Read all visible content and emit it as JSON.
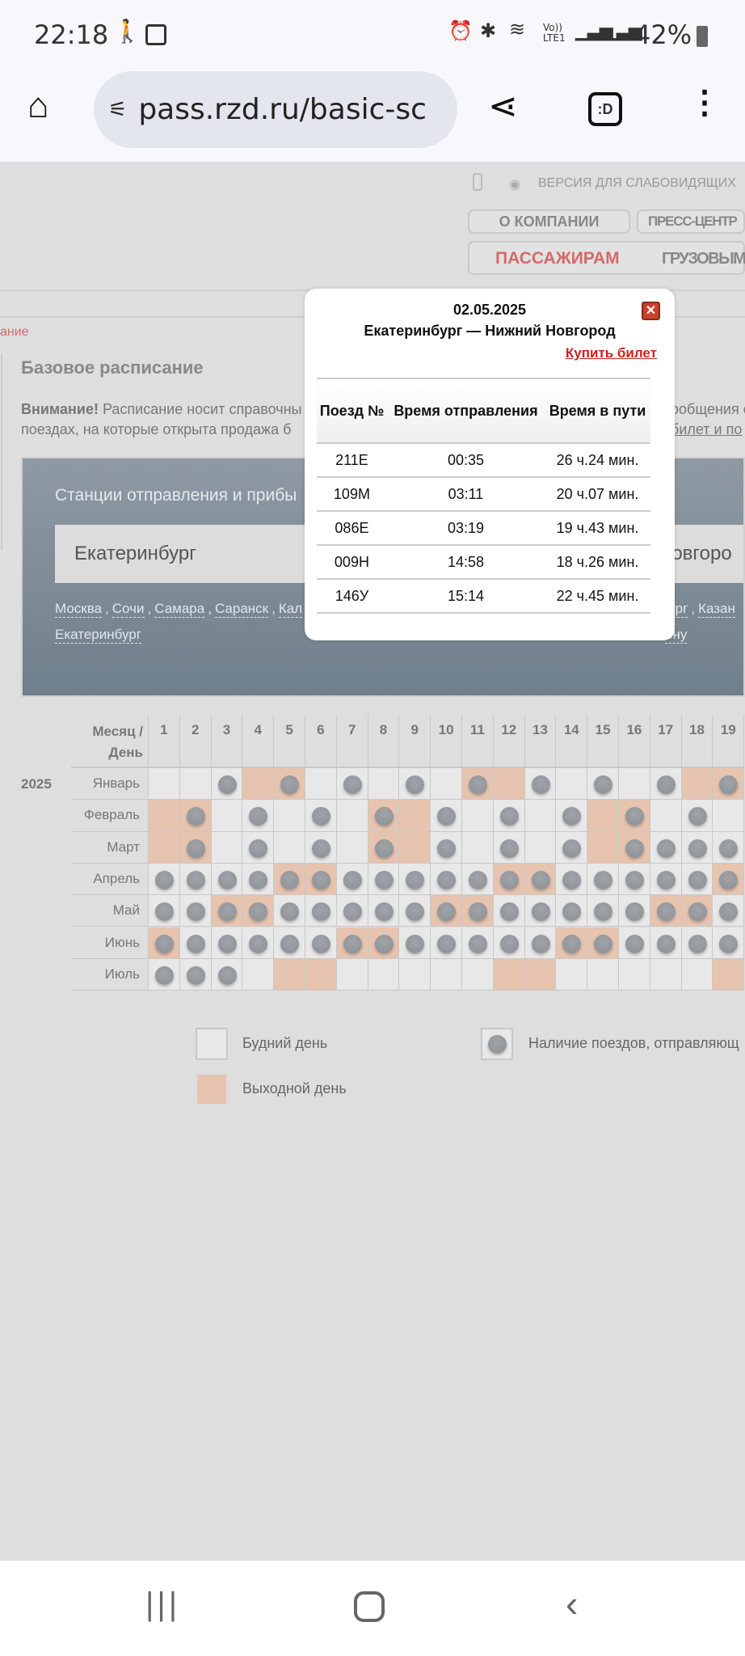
{
  "status_bar": {
    "time": "22:18",
    "battery": "42%",
    "network": "Vo)) LTE1"
  },
  "browser": {
    "url": "pass.rzd.ru/basic-sc",
    "tab_switch_label": ":D"
  },
  "header": {
    "accessibility": "ВЕРСИЯ ДЛЯ СЛАБОВИДЯЩИХ",
    "nav_top": [
      "О КОМПАНИИ",
      "ПРЕСС-ЦЕНТР"
    ],
    "nav_main": [
      "ПАССАЖИРАМ",
      "ГРУЗОВЫМ"
    ]
  },
  "breadcrumb": "ание",
  "page": {
    "title": "Базовое расписание",
    "attention_bold": "Внимание!",
    "attention_line1": "Расписание носит справочны",
    "attention_line1_right": "ообщения о",
    "attention_line2": "поездах, на которые открыта продажа б",
    "attention_line2_right": "билет и по"
  },
  "route_panel": {
    "label": "Станции отправления и прибы",
    "from": "Екатеринбург",
    "to": "Новгоро",
    "from_suggestions": [
      "Москва",
      "Сочи",
      "Самара",
      "Саранск",
      "Кал"
    ],
    "from_suggestion_2": "Екатеринбург",
    "to_suggestions": [
      "бург",
      "Казан"
    ],
    "to_suggestion_2": "ону"
  },
  "modal": {
    "date": "02.05.2025",
    "route": "Екатеринбург — Нижний Новгород",
    "buy_label": "Купить билет",
    "columns": [
      "Поезд №",
      "Время отправления",
      "Время в пути"
    ],
    "rows": [
      [
        "211Е",
        "00:35",
        "26 ч.24 мин."
      ],
      [
        "109М",
        "03:11",
        "20 ч.07 мин."
      ],
      [
        "086Е",
        "03:19",
        "19 ч.43 мин."
      ],
      [
        "009Н",
        "14:58",
        "18 ч.26 мин."
      ],
      [
        "146У",
        "15:14",
        "22 ч.45 мин."
      ]
    ]
  },
  "calendar": {
    "header_label_1": "Месяц /",
    "header_label_2": "День",
    "year": "2025",
    "days": [
      1,
      2,
      3,
      4,
      5,
      6,
      7,
      8,
      9,
      10,
      11,
      12,
      13,
      14,
      15,
      16,
      17,
      18,
      19
    ],
    "months": [
      {
        "name": "Январь",
        "weekends": [
          4,
          5,
          11,
          12,
          18,
          19
        ],
        "trains": [
          3,
          5,
          7,
          9,
          11,
          13,
          15,
          17,
          19
        ]
      },
      {
        "name": "Февраль",
        "weekends": [
          1,
          2,
          8,
          9,
          15,
          16
        ],
        "trains": [
          2,
          4,
          6,
          8,
          10,
          12,
          14,
          16,
          18
        ]
      },
      {
        "name": "Март",
        "weekends": [
          1,
          2,
          8,
          9,
          15,
          16
        ],
        "trains": [
          2,
          4,
          6,
          8,
          10,
          12,
          14,
          16,
          17,
          18,
          19
        ]
      },
      {
        "name": "Апрель",
        "weekends": [
          5,
          6,
          12,
          13,
          19
        ],
        "trains": [
          1,
          2,
          3,
          4,
          5,
          6,
          7,
          8,
          9,
          10,
          11,
          12,
          13,
          14,
          15,
          16,
          17,
          18,
          19
        ]
      },
      {
        "name": "Май",
        "weekends": [
          3,
          4,
          10,
          11,
          17,
          18
        ],
        "trains": [
          1,
          2,
          3,
          4,
          5,
          6,
          7,
          8,
          9,
          10,
          11,
          12,
          13,
          14,
          15,
          16,
          17,
          18,
          19
        ]
      },
      {
        "name": "Июнь",
        "weekends": [
          1,
          7,
          8,
          14,
          15
        ],
        "trains": [
          1,
          2,
          3,
          4,
          5,
          6,
          7,
          8,
          9,
          10,
          11,
          12,
          13,
          14,
          15,
          16,
          17,
          18,
          19
        ]
      },
      {
        "name": "Июль",
        "weekends": [
          5,
          6,
          12,
          13,
          19
        ],
        "trains": [
          1,
          2,
          3
        ]
      }
    ],
    "colors": {
      "weekday": "#e8e8e8",
      "weekend": "#e6c4b0",
      "dot": "#909498"
    }
  },
  "legend": {
    "weekday": "Будний день",
    "weekend": "Выходной день",
    "trains": "Наличие поездов, отправляющ"
  }
}
